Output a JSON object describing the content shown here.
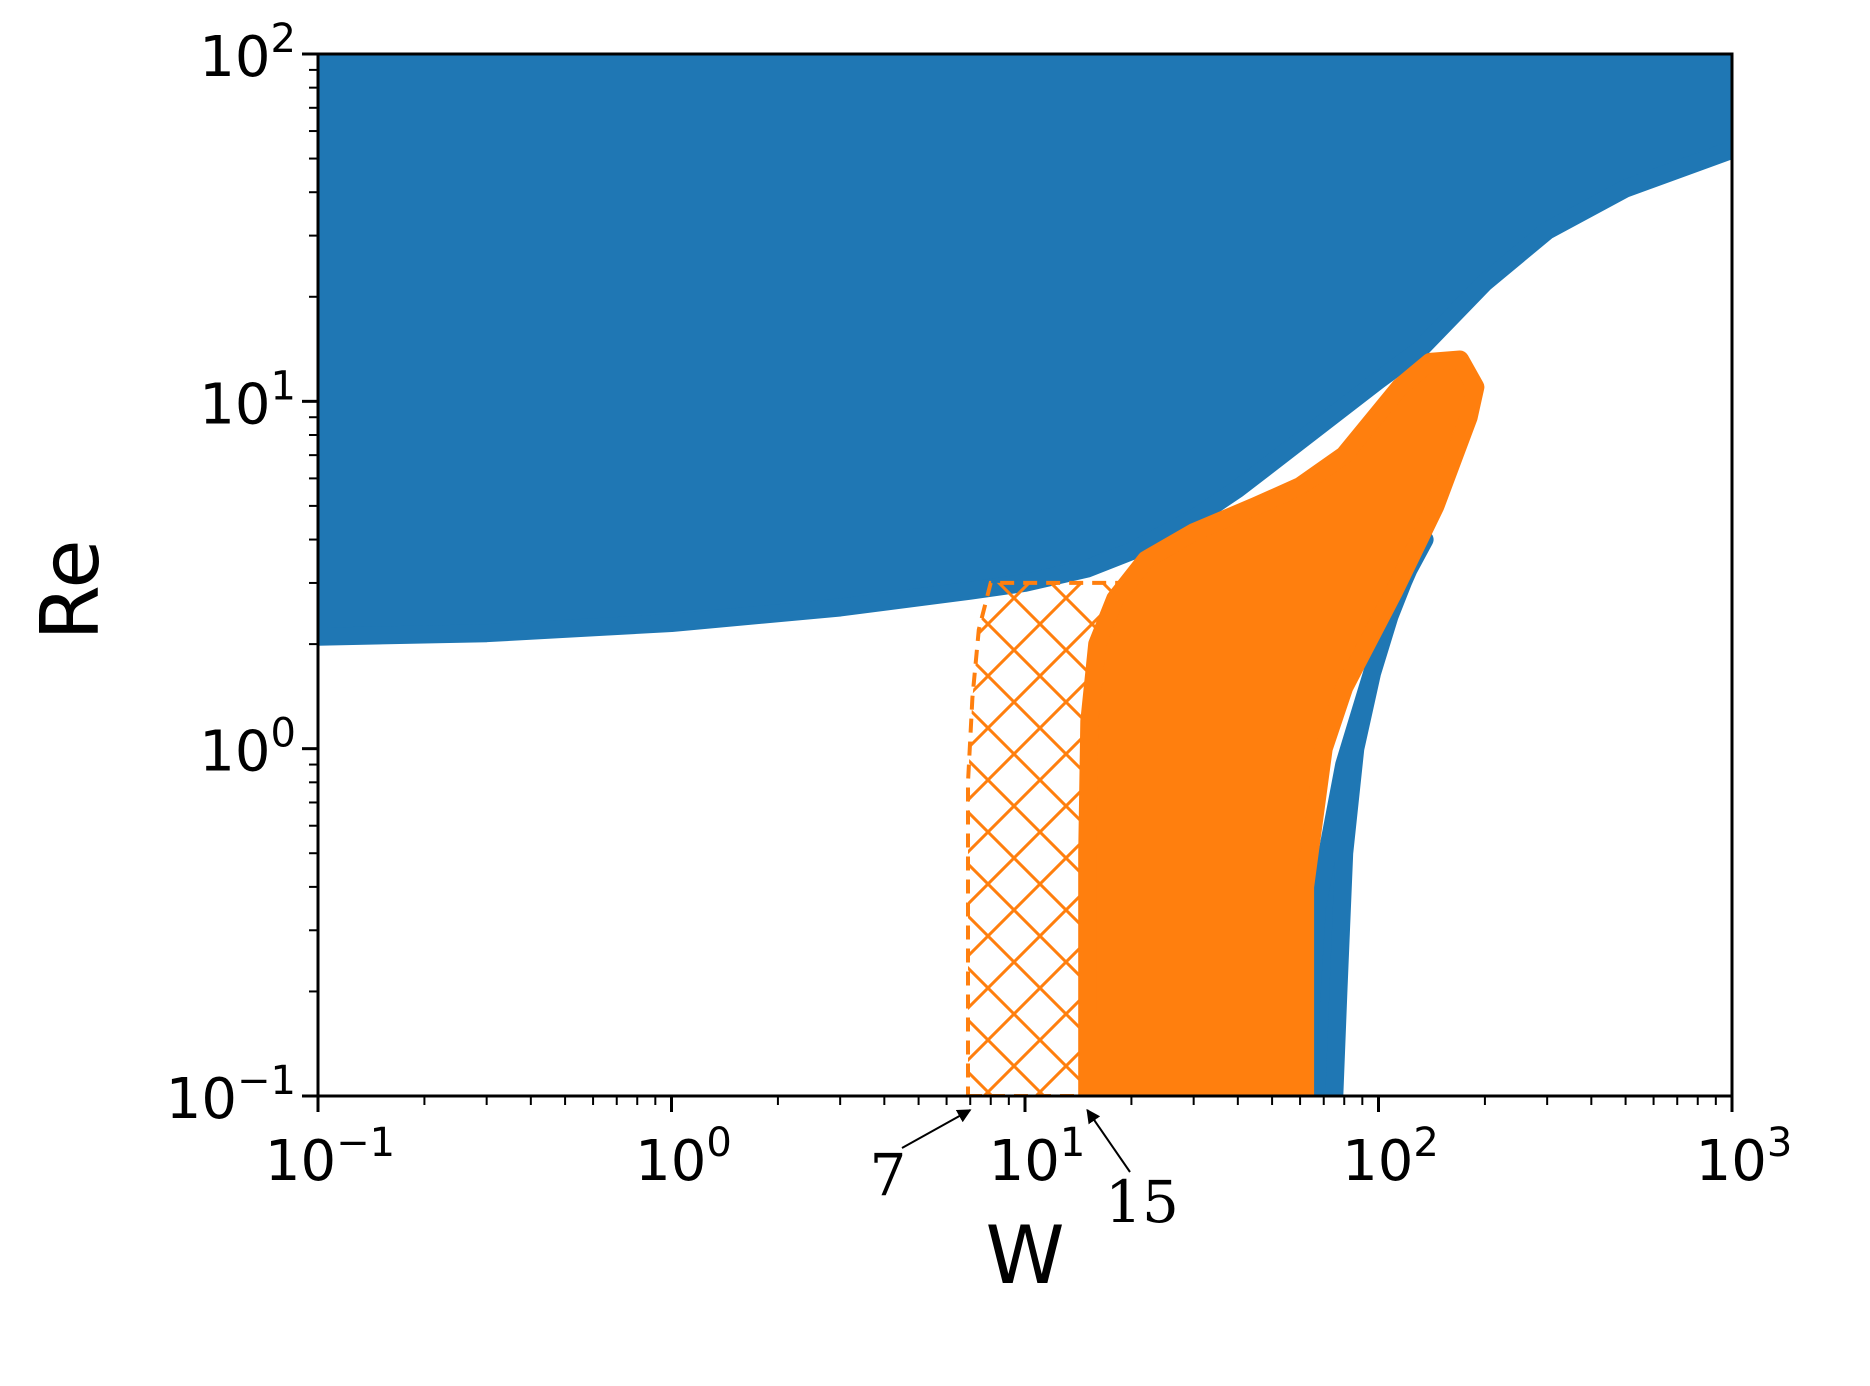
{
  "chart_data": {
    "type": "area",
    "xlabel": "W",
    "ylabel": "Re",
    "xscale": "log",
    "yscale": "log",
    "xlim": [
      0.1,
      1000
    ],
    "ylim": [
      0.1,
      100
    ],
    "grid": false,
    "x_ticks": [
      {
        "base": "10",
        "exp": "−1",
        "value": 0.1
      },
      {
        "base": "10",
        "exp": "0",
        "value": 1
      },
      {
        "base": "10",
        "exp": "1",
        "value": 10
      },
      {
        "base": "10",
        "exp": "2",
        "value": 100
      },
      {
        "base": "10",
        "exp": "3",
        "value": 1000
      }
    ],
    "y_ticks": [
      {
        "base": "10",
        "exp": "−1",
        "value": 0.1
      },
      {
        "base": "10",
        "exp": "0",
        "value": 1
      },
      {
        "base": "10",
        "exp": "1",
        "value": 10
      },
      {
        "base": "10",
        "exp": "2",
        "value": 100
      }
    ],
    "colors": {
      "blue": "#1f77b4",
      "orange": "#ff7f0e"
    },
    "regions": [
      {
        "color": "blue",
        "boundary": [
          [
            0.1,
            2.1
          ],
          [
            0.3,
            2.15
          ],
          [
            1,
            2.3
          ],
          [
            3,
            2.55
          ],
          [
            7,
            2.85
          ],
          [
            10,
            3.0
          ],
          [
            15,
            3.3
          ],
          [
            20,
            3.7
          ],
          [
            30,
            4.6
          ],
          [
            40,
            5.6
          ],
          [
            60,
            7.7
          ],
          [
            100,
            11.5
          ],
          [
            130,
            14
          ],
          [
            200,
            22
          ],
          [
            300,
            31
          ],
          [
            500,
            41
          ],
          [
            1000,
            53
          ],
          [
            1000,
            100
          ],
          [
            0.1,
            100
          ]
        ]
      },
      {
        "color": "blue",
        "boundary": [
          [
            62,
            0.1
          ],
          [
            75,
            0.1
          ],
          [
            77,
            0.2
          ],
          [
            80,
            0.5
          ],
          [
            86,
            1.0
          ],
          [
            100,
            2.0
          ],
          [
            120,
            3.2
          ],
          [
            135,
            4.0
          ],
          [
            125,
            3.5
          ],
          [
            110,
            2.6
          ],
          [
            95,
            1.6
          ],
          [
            80,
            0.9
          ],
          [
            67,
            0.35
          ]
        ]
      },
      {
        "color": "orange",
        "boundary": [
          [
            15,
            0.1
          ],
          [
            62,
            0.1
          ],
          [
            62,
            0.4
          ],
          [
            70,
            1.0
          ],
          [
            80,
            1.5
          ],
          [
            110,
            2.8
          ],
          [
            145,
            5
          ],
          [
            180,
            9
          ],
          [
            188,
            11
          ],
          [
            170,
            13.2
          ],
          [
            140,
            13
          ],
          [
            115,
            11
          ],
          [
            80,
            7.0
          ],
          [
            60,
            5.7
          ],
          [
            45,
            5.0
          ],
          [
            30,
            4.2
          ],
          [
            22,
            3.5
          ],
          [
            18,
            2.7
          ],
          [
            16,
            2.0
          ],
          [
            15.2,
            1.2
          ],
          [
            15,
            0.5
          ]
        ]
      }
    ],
    "hatched_region": {
      "color": "orange",
      "pattern": "crosshatch",
      "boundary": [
        [
          6.9,
          0.1
        ],
        [
          15,
          0.1
        ],
        [
          15,
          0.8
        ],
        [
          15.5,
          1.5
        ],
        [
          17,
          2.2
        ],
        [
          19,
          2.7
        ],
        [
          22,
          3.0
        ],
        [
          8,
          3.0
        ],
        [
          7.4,
          2.2
        ],
        [
          7.1,
          1.4
        ],
        [
          6.9,
          0.8
        ]
      ]
    },
    "annotations": [
      {
        "text": "7",
        "points_to_x": 7,
        "points_to_y": 0.1
      },
      {
        "text": "15",
        "points_to_x": 15,
        "points_to_y": 0.1
      }
    ]
  }
}
